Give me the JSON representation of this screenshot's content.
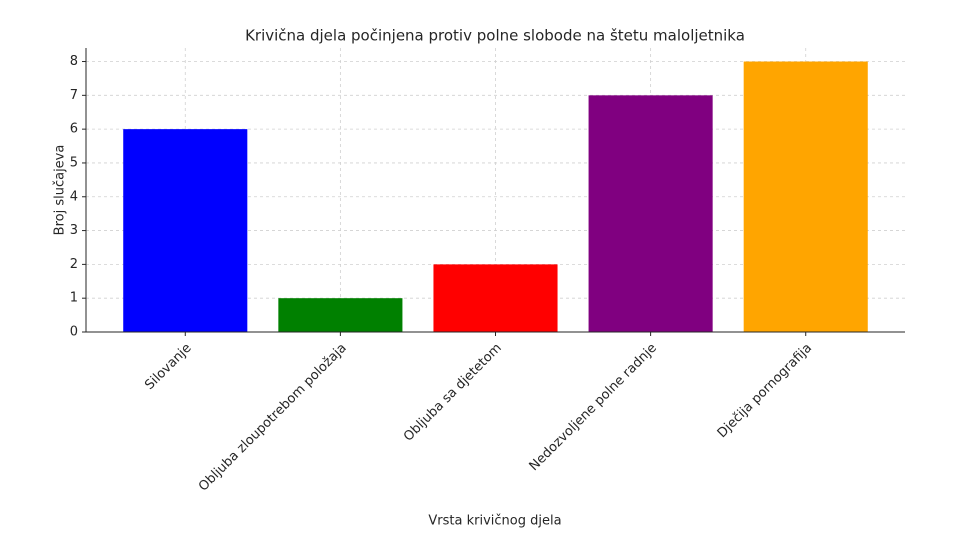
{
  "chart_data": {
    "type": "bar",
    "title": "Krivična djela počinjena protiv polne slobode na štetu maloljetnika",
    "xlabel": "Vrsta krivičnog djela",
    "ylabel": "Broj slučajeva",
    "categories": [
      "Silovanje",
      "Obljuba zloupotrebom položaja",
      "Obljuba sa djetetom",
      "Nedozvoljene polne radnje",
      "Dječija pornografija"
    ],
    "values": [
      6,
      1,
      2,
      7,
      8
    ],
    "colors": [
      "#0000ff",
      "#008000",
      "#ff0000",
      "#800080",
      "#ffa500"
    ],
    "ylim": [
      0,
      8.4
    ],
    "yticks": [
      0,
      1,
      2,
      3,
      4,
      5,
      6,
      7,
      8
    ],
    "grid": true
  }
}
